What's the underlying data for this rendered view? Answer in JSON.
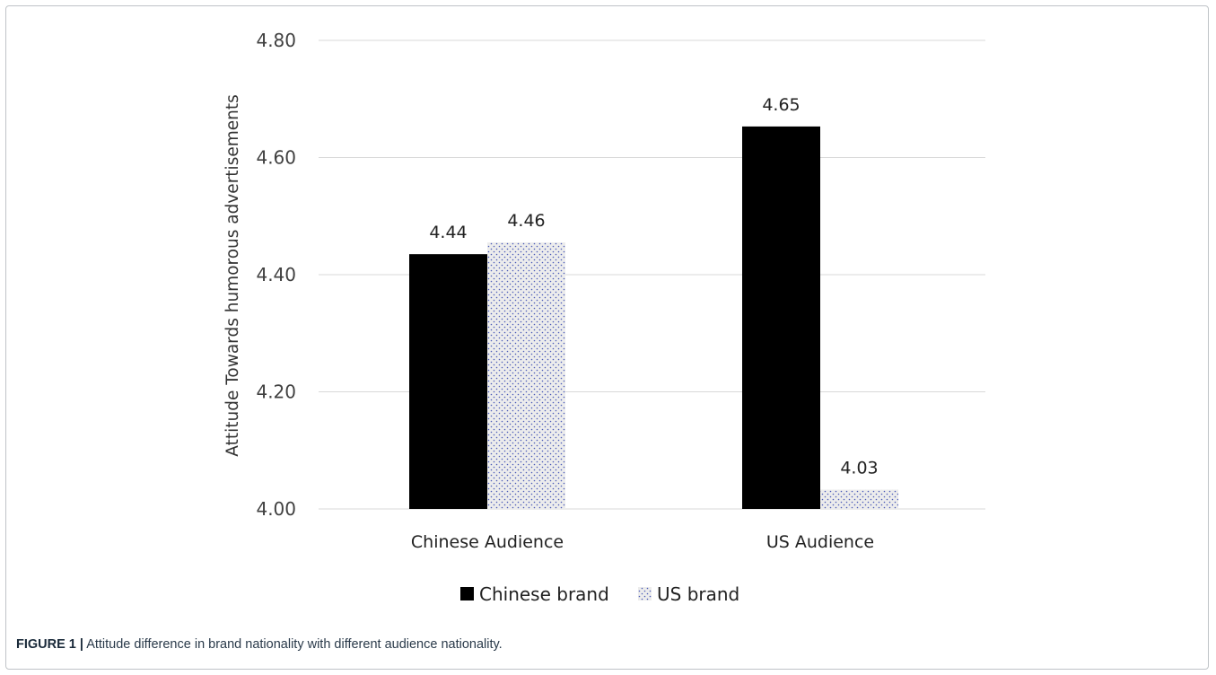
{
  "chart_data": {
    "type": "bar",
    "categories": [
      "Chinese Audience",
      "US Audience"
    ],
    "series": [
      {
        "name": "Chinese brand",
        "values": [
          4.44,
          4.65
        ],
        "color": "#000000"
      },
      {
        "name": "US brand",
        "values": [
          4.46,
          4.03
        ],
        "color": "#ececec",
        "pattern": "blue-dots"
      }
    ],
    "data_labels": [
      [
        "4.44",
        "4.65"
      ],
      [
        "4.46",
        "4.03"
      ]
    ],
    "value_scale": [
      [
        4.435,
        4.653
      ],
      [
        4.455,
        4.033
      ]
    ],
    "ylabel": "Attitude Towards humorous advertisements",
    "ylim": [
      4.0,
      4.8
    ],
    "yticks": [
      "4.00",
      "4.20",
      "4.40",
      "4.60",
      "4.80"
    ],
    "grid": true,
    "legend": "bottom-center"
  },
  "caption": {
    "label": "FIGURE 1 |",
    "text": " Attitude difference in brand nationality with different audience nationality."
  }
}
